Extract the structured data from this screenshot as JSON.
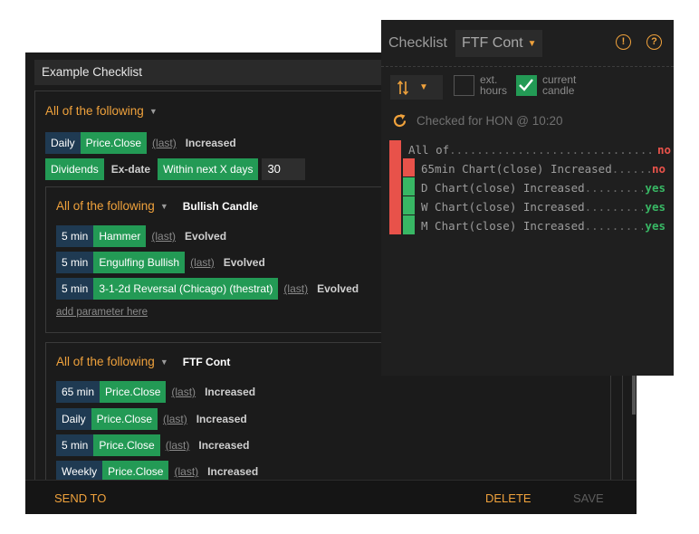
{
  "editor": {
    "title": "Example Checklist",
    "outer_group": {
      "mode": "All of the following",
      "rows": [
        {
          "timeframe": "Daily",
          "field": "Price.Close",
          "lookback": "(last)",
          "condition": "Increased"
        },
        {
          "field": "Dividends",
          "qualifier": "Ex-date",
          "window": "Within next X days",
          "value": "30"
        }
      ]
    },
    "groups": [
      {
        "mode": "All of the following",
        "name": "Bullish Candle",
        "rows": [
          {
            "timeframe": "5 min",
            "pattern": "Hammer",
            "lookback": "(last)",
            "condition": "Evolved"
          },
          {
            "timeframe": "5 min",
            "pattern": "Engulfing Bullish",
            "lookback": "(last)",
            "condition": "Evolved"
          },
          {
            "timeframe": "5 min",
            "pattern": "3-1-2d Reversal (Chicago) (thestrat)",
            "lookback": "(last)",
            "condition": "Evolved"
          }
        ],
        "add_param": "add parameter here"
      },
      {
        "mode": "All of the following",
        "name": "FTF Cont",
        "rows": [
          {
            "timeframe": "65 min",
            "field": "Price.Close",
            "lookback": "(last)",
            "condition": "Increased"
          },
          {
            "timeframe": "Daily",
            "field": "Price.Close",
            "lookback": "(last)",
            "condition": "Increased"
          },
          {
            "timeframe": "5 min",
            "field": "Price.Close",
            "lookback": "(last)",
            "condition": "Increased"
          },
          {
            "timeframe": "Weekly",
            "field": "Price.Close",
            "lookback": "(last)",
            "condition": "Increased"
          }
        ]
      }
    ],
    "footer": {
      "send_to": "SEND TO",
      "delete": "DELETE",
      "save": "SAVE"
    }
  },
  "popup": {
    "title": "Checklist",
    "selected_checklist": "FTF Cont",
    "options": {
      "ext_hours_label": "ext.\nhours",
      "ext_hours_checked": false,
      "current_candle_label": "current\ncandle",
      "current_candle_checked": true
    },
    "status": "Checked for HON @ 10:20",
    "results": [
      {
        "label": "All of",
        "value": "no"
      },
      {
        "label": "65min Chart(close) Increased",
        "value": "no"
      },
      {
        "label": "D Chart(close) Increased",
        "value": "yes"
      },
      {
        "label": "W Chart(close) Increased",
        "value": "yes"
      },
      {
        "label": "M Chart(close) Increased",
        "value": "yes"
      }
    ]
  },
  "colors": {
    "accent": "#f0a23c",
    "green": "#239a55",
    "red": "#e8524a",
    "yes": "#38b764",
    "timeframe_chip": "#1f3a52"
  },
  "icons": [
    "caret-down-icon",
    "info-icon",
    "help-icon",
    "sort-icon",
    "refresh-icon",
    "checkmark-icon"
  ]
}
